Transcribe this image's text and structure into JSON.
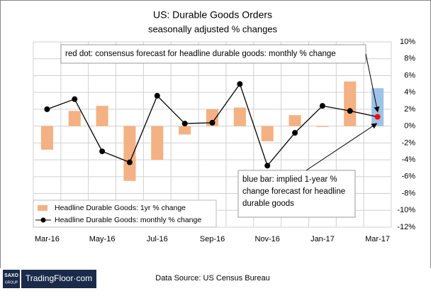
{
  "chart_data": {
    "type": "bar-line",
    "title": "US: Durable Goods Orders",
    "subtitle": "seasonally adjusted % changes",
    "categories": [
      "Mar-16",
      null,
      "May-16",
      null,
      "Jul-16",
      null,
      "Sep-16",
      null,
      "Nov-16",
      null,
      "Jan-17",
      null,
      "Mar-17"
    ],
    "series": [
      {
        "name": "Headline Durable Goods: 1yr % change",
        "kind": "bar",
        "color": "#f4b183",
        "colors": [
          "#f4b183",
          "#f4b183",
          "#f4b183",
          "#f4b183",
          "#f4b183",
          "#f4b183",
          "#f4b183",
          "#f4b183",
          "#f4b183",
          "#f4b183",
          "#f4b183",
          "#f4b183",
          "#9dc3e6"
        ],
        "values": [
          -2.8,
          1.8,
          2.4,
          -6.5,
          -4.0,
          -1.0,
          2.0,
          2.2,
          -1.8,
          1.3,
          -0.1,
          5.3,
          4.5
        ]
      },
      {
        "name": "Headline Durable Goods: monthly % change",
        "kind": "line",
        "color": "#000000",
        "marker_colors": [
          "#000000",
          "#000000",
          "#000000",
          "#000000",
          "#000000",
          "#000000",
          "#000000",
          "#000000",
          "#000000",
          "#000000",
          "#000000",
          "#000000",
          "#ff0000"
        ],
        "values": [
          2.0,
          3.2,
          -3.0,
          -4.3,
          3.6,
          0.3,
          0.4,
          5.0,
          -4.7,
          -0.8,
          2.4,
          1.8,
          1.1
        ]
      }
    ],
    "ylim": [
      -12,
      10
    ],
    "yticks": [
      {
        "value": 10,
        "label": "10%"
      },
      {
        "value": 8,
        "label": "8%"
      },
      {
        "value": 6,
        "label": "6%"
      },
      {
        "value": 4,
        "label": "4%"
      },
      {
        "value": 2,
        "label": "2%"
      },
      {
        "value": 0,
        "label": "0%"
      },
      {
        "value": -2,
        "label": "-2%"
      },
      {
        "value": -4,
        "label": "-4%"
      },
      {
        "value": -6,
        "label": "-6%"
      },
      {
        "value": -8,
        "label": "-8%"
      },
      {
        "value": -10,
        "label": "-10%"
      },
      {
        "value": -12,
        "label": "-12%"
      }
    ],
    "grid": true,
    "legend": "lower left",
    "annotations": [
      {
        "lines": [
          "red dot: consensus forecast for headline durable goods: monthly % change"
        ]
      },
      {
        "lines": [
          "blue bar: implied 1-year %",
          "change forecast for headline",
          "durable goods"
        ]
      }
    ]
  },
  "footer": {
    "source": "Data Source: US Census Bureau",
    "logo_top": "SAXO",
    "logo_bottom": "GROUP",
    "brand": "TradingFloor·com"
  }
}
